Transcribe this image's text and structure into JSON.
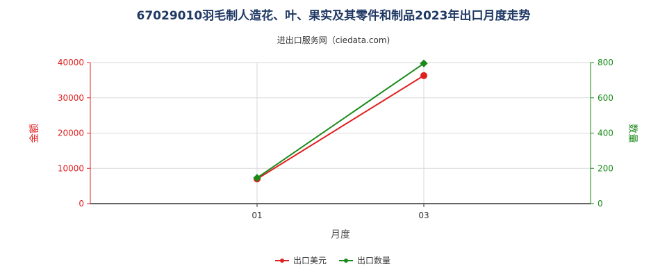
{
  "chart_data": {
    "type": "line",
    "title": "67029010羽毛制人造花、叶、果实及其零件和制品2023年出口月度走势",
    "subtitle": "进出口服务网（ciedata.com)",
    "xlabel": "月度",
    "ylabel_left": "金额",
    "ylabel_right": "数量",
    "categories": [
      "01",
      "03"
    ],
    "ylim_left": [
      0,
      40000
    ],
    "ylim_right": [
      0,
      800
    ],
    "yticks_left": [
      "0",
      "10000",
      "20000",
      "30000",
      "40000"
    ],
    "yticks_right": [
      "0",
      "200",
      "400",
      "600",
      "800"
    ],
    "grid": true,
    "legend_position": "bottom",
    "series": [
      {
        "name": "出口美元",
        "axis": "left",
        "color": "#e02020",
        "values": [
          7000,
          36300
        ]
      },
      {
        "name": "出口数量",
        "axis": "right",
        "color": "#1a8a1a",
        "values": [
          146,
          795
        ]
      }
    ]
  }
}
